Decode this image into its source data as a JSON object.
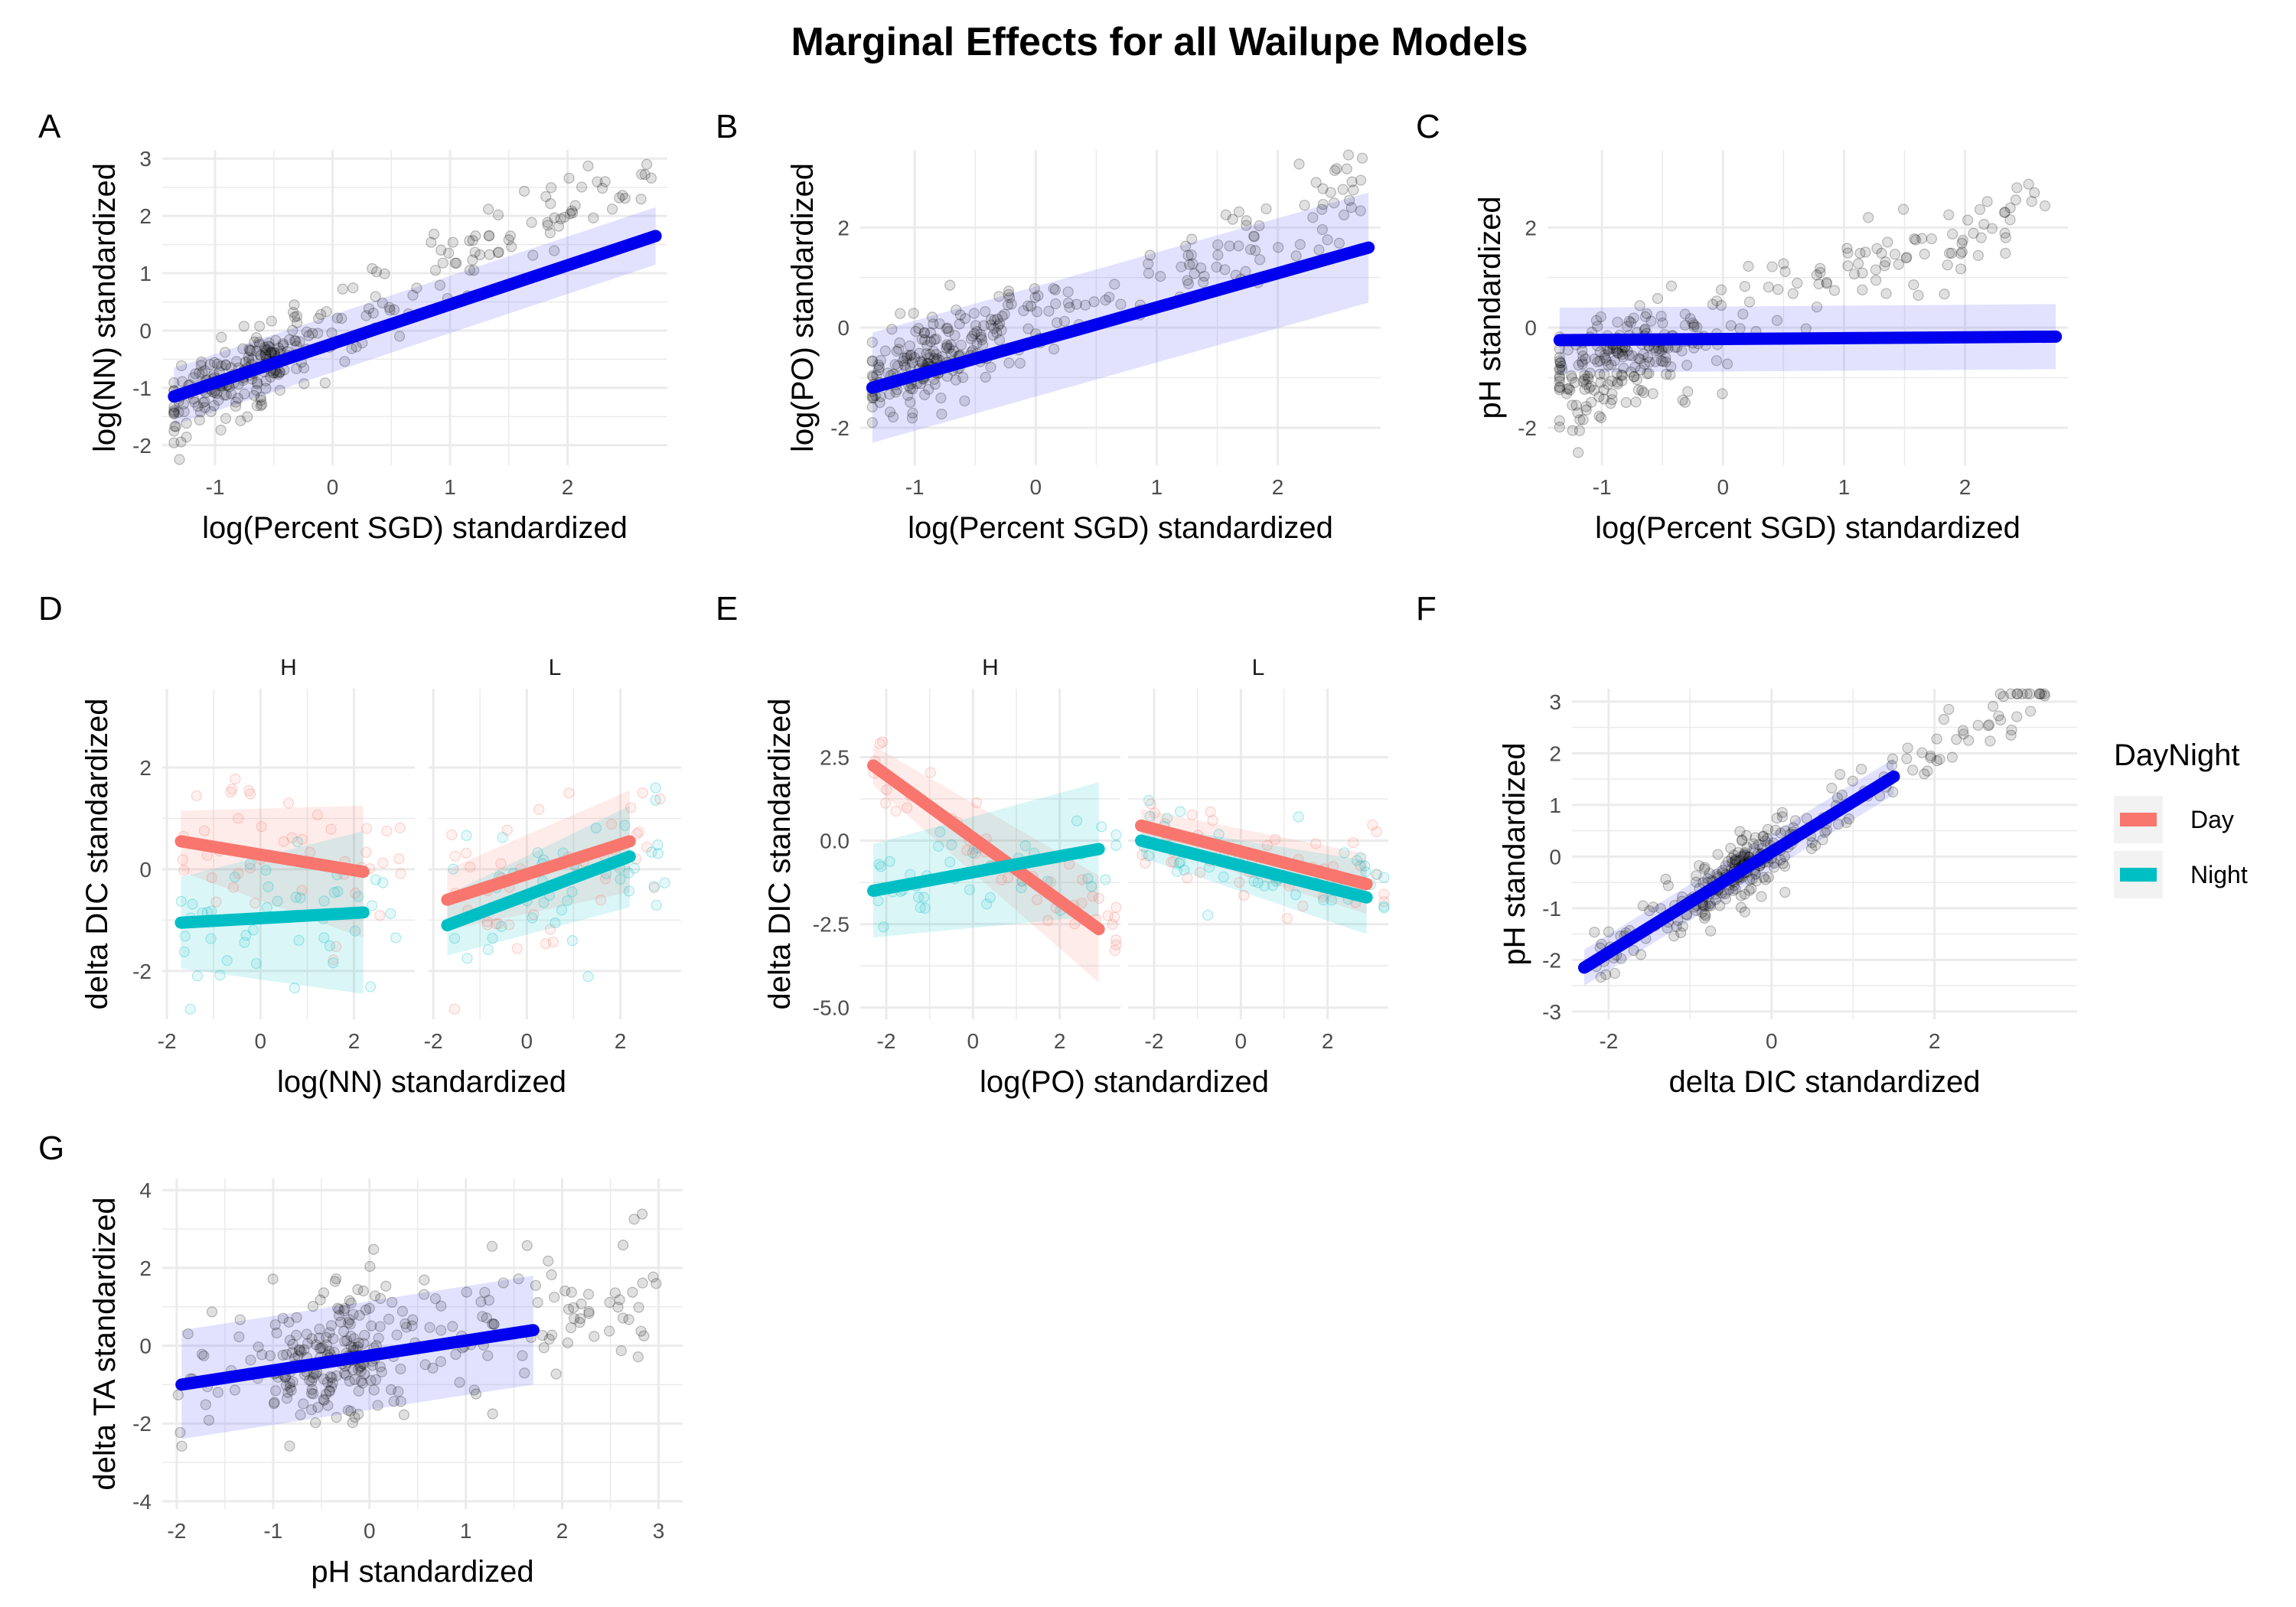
{
  "title": "Marginal Effects for all Wailupe Models",
  "colors": {
    "fit_blue": "#0000EE",
    "band_blue": "#7A7AFF",
    "day": "#F8766D",
    "night": "#00BFC4",
    "points": "#000000",
    "grid": "#EBEBEB"
  },
  "legend": {
    "title": "DayNight",
    "items": [
      {
        "label": "Day",
        "color": "#F8766D"
      },
      {
        "label": "Night",
        "color": "#00BFC4"
      }
    ]
  },
  "chart_data": [
    {
      "id": "A",
      "tag": "A",
      "type": "scatter",
      "xlabel": "log(Percent SGD) standardized",
      "ylabel": "log(NN) standardized",
      "xlim": [
        -1.45,
        2.85
      ],
      "ylim": [
        -2.35,
        3.15
      ],
      "xticks": [
        -1,
        0,
        1,
        2
      ],
      "yticks": [
        -2,
        -1,
        0,
        1,
        2,
        3
      ],
      "trend": {
        "x": [
          -1.35,
          2.75
        ],
        "y": [
          -1.15,
          1.65
        ],
        "band": 0.5,
        "color": "#0000EE",
        "band_color": "#7A7AFF"
      },
      "scatter": {
        "x_range": [
          -1.35,
          2.75
        ],
        "cluster": -0.85,
        "slope": 1.05,
        "intercept": 0.05,
        "noise": 0.35,
        "count": 300
      }
    },
    {
      "id": "B",
      "tag": "B",
      "type": "scatter",
      "xlabel": "log(Percent SGD) standardized",
      "ylabel": "log(PO) standardized",
      "xlim": [
        -1.45,
        2.85
      ],
      "ylim": [
        -2.75,
        3.55
      ],
      "xticks": [
        -1,
        0,
        1,
        2
      ],
      "yticks": [
        -2,
        0,
        2
      ],
      "trend": {
        "x": [
          -1.35,
          2.75
        ],
        "y": [
          -1.2,
          1.6
        ],
        "band": 1.1,
        "color": "#0000EE",
        "band_color": "#7A7AFF"
      },
      "scatter": {
        "x_range": [
          -1.35,
          2.75
        ],
        "cluster": -0.8,
        "slope": 0.95,
        "intercept": 0.1,
        "noise": 0.45,
        "count": 300
      }
    },
    {
      "id": "C",
      "tag": "C",
      "type": "scatter",
      "xlabel": "log(Percent SGD) standardized",
      "ylabel": "pH standardized",
      "xlim": [
        -1.45,
        2.85
      ],
      "ylim": [
        -2.75,
        3.55
      ],
      "xticks": [
        -1,
        0,
        1,
        2
      ],
      "yticks": [
        -2,
        0,
        2
      ],
      "trend": {
        "x": [
          -1.35,
          2.75
        ],
        "y": [
          -0.25,
          -0.18
        ],
        "band": 0.65,
        "color": "#0000EE",
        "band_color": "#7A7AFF"
      },
      "scatter": {
        "x_range": [
          -1.35,
          2.75
        ],
        "cluster": -0.8,
        "slope": 0.9,
        "intercept": 0.1,
        "noise": 0.45,
        "count": 300
      }
    },
    {
      "id": "D",
      "tag": "D",
      "type": "line",
      "xlabel": "log(NN) standardized",
      "ylabel": "delta DIC standardized",
      "ylim": [
        -2.95,
        3.55
      ],
      "yticks": [
        -2,
        0,
        2
      ],
      "facets": [
        {
          "label": "H",
          "xlim": [
            -2.1,
            3.3
          ],
          "xticks": [
            -2,
            0,
            2
          ],
          "series": [
            {
              "name": "Day",
              "color": "#F8766D",
              "x": [
                -1.7,
                2.2
              ],
              "y": [
                0.55,
                -0.05
              ],
              "band": [
                0.6,
                1.3
              ]
            },
            {
              "name": "Night",
              "color": "#00BFC4",
              "x": [
                -1.7,
                2.2
              ],
              "y": [
                -1.05,
                -0.85
              ],
              "band": [
                0.9,
                1.6
              ]
            }
          ]
        },
        {
          "label": "L",
          "xlim": [
            -2.1,
            3.3
          ],
          "xticks": [
            -2,
            0,
            2
          ],
          "series": [
            {
              "name": "Day",
              "color": "#F8766D",
              "x": [
                -1.7,
                2.2
              ],
              "y": [
                -0.6,
                0.55
              ],
              "band": [
                0.6,
                1.0
              ]
            },
            {
              "name": "Night",
              "color": "#00BFC4",
              "x": [
                -1.7,
                2.2
              ],
              "y": [
                -1.1,
                0.25
              ],
              "band": [
                0.6,
                1.0
              ]
            }
          ]
        }
      ]
    },
    {
      "id": "E",
      "tag": "E",
      "type": "line",
      "xlabel": "log(PO) standardized",
      "ylabel": "delta DIC standardized",
      "ylim": [
        -5.35,
        4.55
      ],
      "yticks": [
        -5.0,
        -2.5,
        0.0,
        2.5
      ],
      "ytick_labels": [
        "-5.0",
        "-2.5",
        "0.0",
        "2.5"
      ],
      "facets": [
        {
          "label": "H",
          "xlim": [
            -2.6,
            3.4
          ],
          "xticks": [
            -2,
            0,
            2
          ],
          "series": [
            {
              "name": "Day",
              "color": "#F8766D",
              "x": [
                -2.3,
                2.9
              ],
              "y": [
                2.25,
                -2.65
              ],
              "band": [
                0.6,
                1.6
              ]
            },
            {
              "name": "Night",
              "color": "#00BFC4",
              "x": [
                -2.3,
                2.9
              ],
              "y": [
                -1.5,
                -0.25
              ],
              "band": [
                1.4,
                2.0
              ]
            }
          ]
        },
        {
          "label": "L",
          "xlim": [
            -2.6,
            3.4
          ],
          "xticks": [
            -2,
            0,
            2
          ],
          "series": [
            {
              "name": "Day",
              "color": "#F8766D",
              "x": [
                -2.3,
                2.9
              ],
              "y": [
                0.45,
                -1.3
              ],
              "band": [
                0.5,
                0.9
              ]
            },
            {
              "name": "Night",
              "color": "#00BFC4",
              "x": [
                -2.3,
                2.9
              ],
              "y": [
                0.0,
                -1.7
              ],
              "band": [
                0.5,
                1.1
              ]
            }
          ]
        }
      ]
    },
    {
      "id": "F",
      "tag": "F",
      "type": "scatter",
      "xlabel": "delta DIC standardized",
      "ylabel": "pH standardized",
      "xlim": [
        -2.45,
        3.75
      ],
      "ylim": [
        -3.15,
        3.25
      ],
      "xticks": [
        -2,
        0,
        2
      ],
      "yticks": [
        -3,
        -2,
        -1,
        0,
        1,
        2,
        3
      ],
      "trend": {
        "x": [
          -2.3,
          1.5
        ],
        "y": [
          -2.15,
          1.55
        ],
        "band": 0.35,
        "color": "#0000EE",
        "band_color": "#7A7AFF"
      },
      "scatter": {
        "x_range": [
          -2.2,
          3.4
        ],
        "cluster": -0.4,
        "slope": 0.97,
        "intercept": 0.05,
        "noise": 0.3,
        "count": 300
      }
    },
    {
      "id": "G",
      "tag": "G",
      "type": "scatter",
      "xlabel": "pH standardized",
      "ylabel": "delta TA standardized",
      "xlim": [
        -2.15,
        3.25
      ],
      "ylim": [
        -4.2,
        4.3
      ],
      "xticks": [
        -2,
        -1,
        0,
        1,
        2,
        3
      ],
      "yticks": [
        -4,
        -2,
        0,
        2,
        4
      ],
      "trend": {
        "x": [
          -1.95,
          1.7
        ],
        "y": [
          -1.0,
          0.4
        ],
        "band": 1.4,
        "color": "#0000EE",
        "band_color": "#7A7AFF"
      },
      "scatter": {
        "x_range": [
          -2.0,
          3.0
        ],
        "cluster": -0.3,
        "slope": 0.4,
        "intercept": -0.1,
        "noise": 0.9,
        "count": 300
      }
    }
  ]
}
